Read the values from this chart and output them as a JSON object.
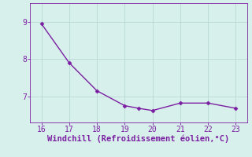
{
  "x": [
    16,
    17,
    18,
    19,
    19.5,
    20,
    21,
    22,
    23
  ],
  "y": [
    8.95,
    7.9,
    7.15,
    6.75,
    6.68,
    6.62,
    6.82,
    6.82,
    6.68
  ],
  "line_color": "#7b1fa2",
  "marker": "D",
  "marker_size": 2.5,
  "bg_color": "#d8f0ec",
  "grid_color": "#b8d8d4",
  "axis_color": "#7b1fa2",
  "xlabel": "Windchill (Refroidissement éolien,°C)",
  "xlabel_fontsize": 7.5,
  "xlim": [
    15.6,
    23.4
  ],
  "ylim": [
    6.3,
    9.5
  ],
  "yticks": [
    7,
    8,
    9
  ],
  "xticks": [
    16,
    17,
    18,
    19,
    20,
    21,
    22,
    23
  ],
  "tick_fontsize": 7,
  "line_width": 1.0
}
